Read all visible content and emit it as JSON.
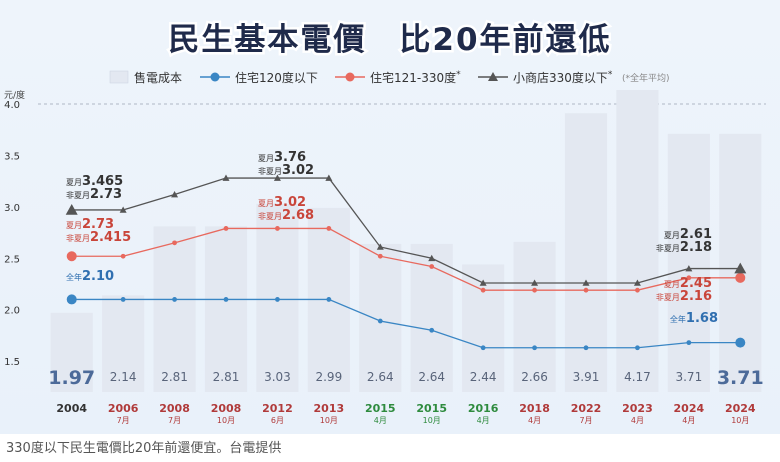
{
  "caption": "330度以下民生電價比20年前還便宜。台電提供",
  "chart_data": {
    "type": "bar+line",
    "title": "民生基本電價　比20年前還低",
    "ylabel": "元/度",
    "ylim": [
      1.2,
      4.0
    ],
    "yticks": [
      "1.5",
      "2.0",
      "2.5",
      "3.0",
      "3.5",
      "4.0"
    ],
    "ytick_values": [
      1.5,
      2.0,
      2.5,
      3.0,
      3.5,
      4.0
    ],
    "legend_note": "(*全年平均)",
    "categories": [
      {
        "year": "2004",
        "month": "",
        "color": "#333333"
      },
      {
        "year": "2006",
        "month": "7月",
        "color": "#b03a3a"
      },
      {
        "year": "2008",
        "month": "7月",
        "color": "#b03a3a"
      },
      {
        "year": "2008",
        "month": "10月",
        "color": "#b03a3a"
      },
      {
        "year": "2012",
        "month": "6月",
        "color": "#b03a3a"
      },
      {
        "year": "2013",
        "month": "10月",
        "color": "#b03a3a"
      },
      {
        "year": "2015",
        "month": "4月",
        "color": "#2e8b3e"
      },
      {
        "year": "2015",
        "month": "10月",
        "color": "#2e8b3e"
      },
      {
        "year": "2016",
        "month": "4月",
        "color": "#2e8b3e"
      },
      {
        "year": "2018",
        "month": "4月",
        "color": "#b03a3a"
      },
      {
        "year": "2022",
        "month": "7月",
        "color": "#b03a3a"
      },
      {
        "year": "2023",
        "month": "4月",
        "color": "#b03a3a"
      },
      {
        "year": "2024",
        "month": "4月",
        "color": "#b03a3a"
      },
      {
        "year": "2024",
        "month": "10月",
        "color": "#b03a3a"
      }
    ],
    "bars": {
      "name": "售電成本",
      "color": "#e3e8f1",
      "values": [
        1.97,
        2.14,
        2.81,
        2.81,
        3.03,
        2.99,
        2.64,
        2.64,
        2.44,
        2.66,
        3.91,
        4.17,
        3.71,
        3.71
      ],
      "labels": [
        "1.97",
        "2.14",
        "2.81",
        "2.81",
        "3.03",
        "2.99",
        "2.64",
        "2.64",
        "2.44",
        "2.66",
        "3.91",
        "4.17",
        "3.71",
        "3.71"
      ]
    },
    "series": [
      {
        "name": "住宅120度以下",
        "color": "#3a86c4",
        "marker": "circle",
        "values": [
          2.1,
          2.1,
          2.1,
          2.1,
          2.1,
          2.1,
          1.89,
          1.8,
          1.63,
          1.63,
          1.63,
          1.63,
          1.68,
          1.68
        ]
      },
      {
        "name": "住宅121-330度",
        "name_sup": "*",
        "color": "#e8695e",
        "marker": "circle",
        "values": [
          2.52,
          2.52,
          2.65,
          2.79,
          2.79,
          2.79,
          2.52,
          2.42,
          2.19,
          2.19,
          2.19,
          2.19,
          2.31,
          2.31
        ]
      },
      {
        "name": "小商店330度以下",
        "name_sup": "*",
        "color": "#555555",
        "marker": "triangle",
        "values": [
          2.97,
          2.97,
          3.12,
          3.28,
          3.28,
          3.28,
          2.61,
          2.5,
          2.26,
          2.26,
          2.26,
          2.26,
          2.4,
          2.4
        ]
      }
    ],
    "annotations": [
      {
        "id": "shop-2004",
        "lines": [
          {
            "prefix": "夏月",
            "value": "3.465"
          },
          {
            "prefix": "非夏月",
            "value": "2.73"
          }
        ],
        "color": "#333333"
      },
      {
        "id": "shop-2012",
        "lines": [
          {
            "prefix": "夏月",
            "value": "3.76"
          },
          {
            "prefix": "非夏月",
            "value": "3.02"
          }
        ],
        "color": "#333333"
      },
      {
        "id": "res-2004",
        "lines": [
          {
            "prefix": "夏月",
            "value": "2.73"
          },
          {
            "prefix": "非夏月",
            "value": "2.415"
          }
        ],
        "color": "#c9453a"
      },
      {
        "id": "res-2012",
        "lines": [
          {
            "prefix": "夏月",
            "value": "3.02"
          },
          {
            "prefix": "非夏月",
            "value": "2.68"
          }
        ],
        "color": "#c9453a"
      },
      {
        "id": "low-2004",
        "lines": [
          {
            "prefix": "全年",
            "value": "2.10"
          }
        ],
        "color": "#2f6fb0"
      },
      {
        "id": "shop-2024",
        "lines": [
          {
            "prefix": "夏月",
            "value": "2.61"
          },
          {
            "prefix": "非夏月",
            "value": "2.18"
          }
        ],
        "color": "#333333"
      },
      {
        "id": "res-2024",
        "lines": [
          {
            "prefix": "夏月",
            "value": "2.45"
          },
          {
            "prefix": "非夏月",
            "value": "2.16"
          }
        ],
        "color": "#c9453a"
      },
      {
        "id": "low-2024",
        "lines": [
          {
            "prefix": "全年",
            "value": "1.68"
          }
        ],
        "color": "#2f6fb0"
      }
    ]
  }
}
